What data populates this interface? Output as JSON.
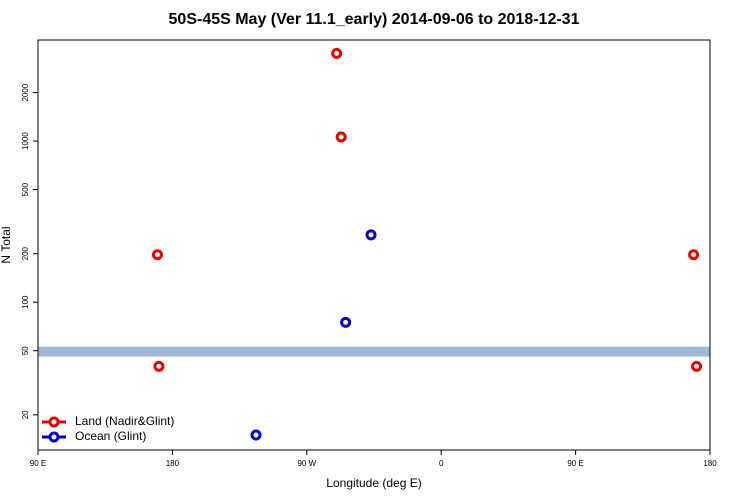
{
  "chart_data": {
    "type": "scatter",
    "title": "50S-45S May (Ver 11.1_early)   2014-09-06 to 2018-12-31",
    "xlabel": "Longitude (deg E)",
    "ylabel": "N Total",
    "log_y": true,
    "xlim": [
      90,
      540
    ],
    "xticks": [
      {
        "value": 90,
        "label": "90 E"
      },
      {
        "value": 180,
        "label": "180"
      },
      {
        "value": 270,
        "label": "90 W"
      },
      {
        "value": 360,
        "label": "0"
      },
      {
        "value": 450,
        "label": "90 E"
      },
      {
        "value": 540,
        "label": "180"
      }
    ],
    "ylim": [
      12.1,
      4240
    ],
    "yticks": [
      20,
      50,
      100,
      200,
      500,
      1000,
      2000
    ],
    "band": [
      46,
      53
    ],
    "band_color": "#a3b8d6",
    "legend": "lower left",
    "series": [
      {
        "name": "Land (Nadir&Glint)",
        "color": "#ee0000",
        "x": [
          290,
          293,
          170,
          529,
          171,
          531
        ],
        "values": [
          3500,
          1060,
          197,
          197,
          40,
          40
        ]
      },
      {
        "name": "Ocean (Glint)",
        "color": "#0000dd",
        "x": [
          313,
          296,
          236
        ],
        "values": [
          262,
          75,
          15
        ]
      }
    ]
  }
}
